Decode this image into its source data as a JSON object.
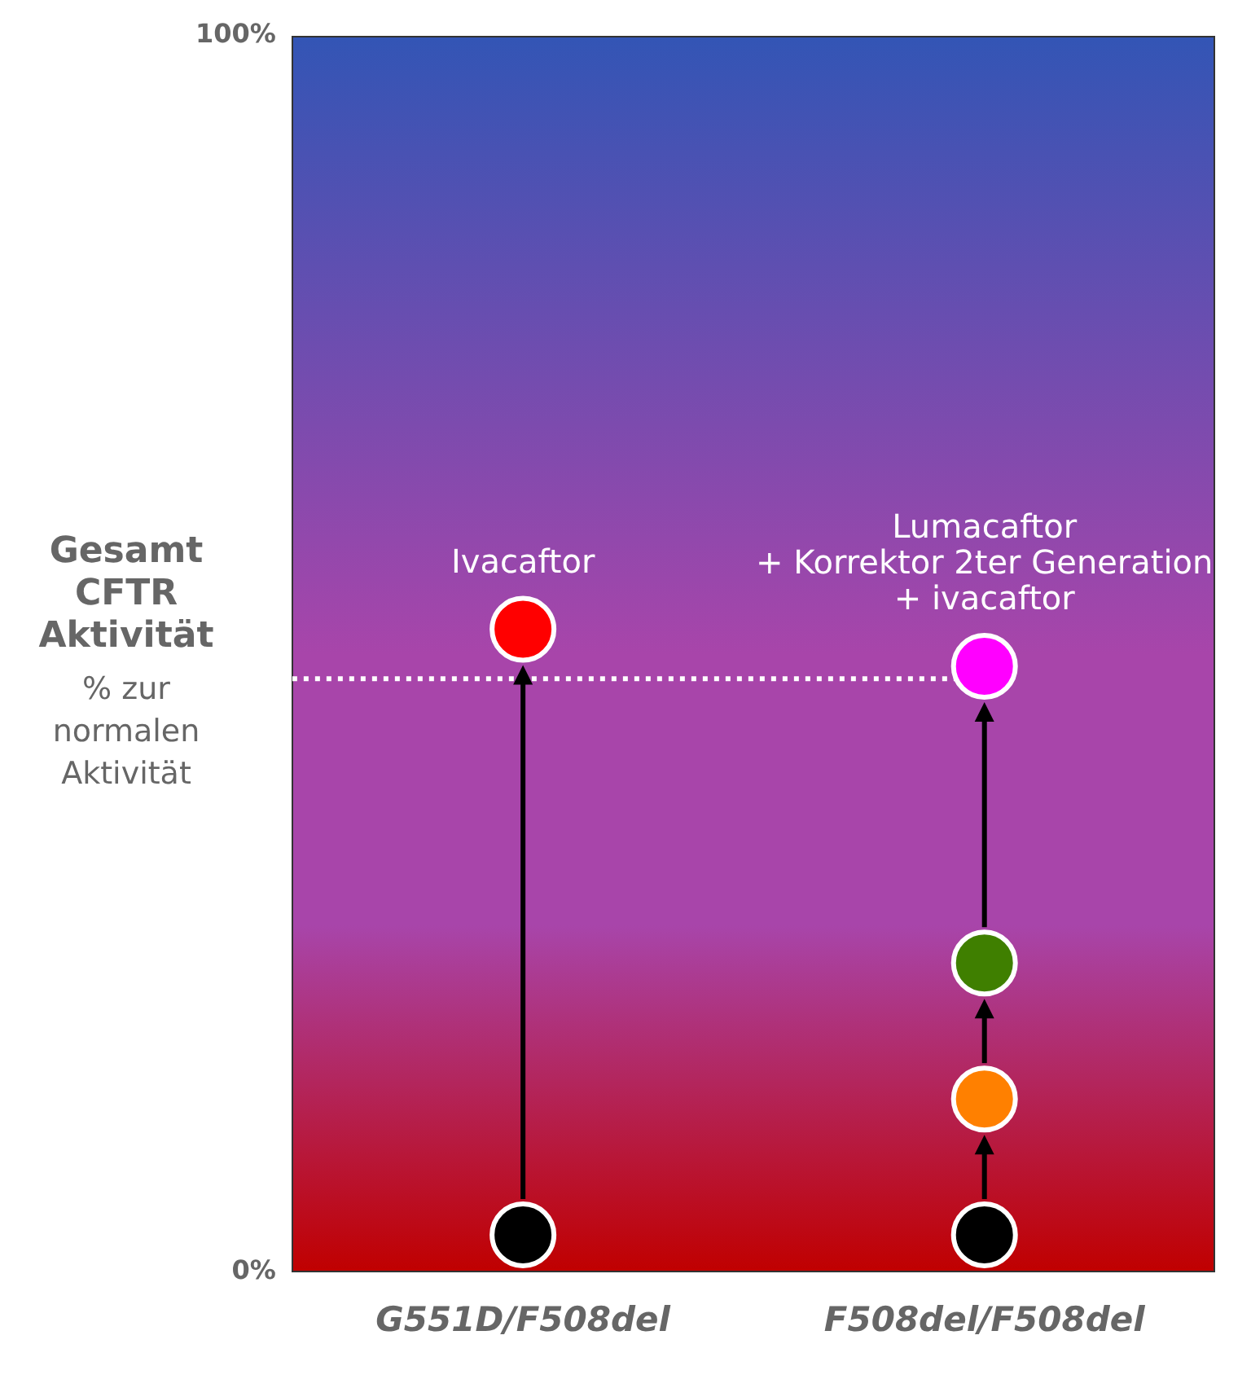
{
  "chart_data": {
    "type": "scatter",
    "ylabel": "Gesamt CFTR Aktivität",
    "categories": [
      "G551D/F508del",
      "F508del/F508del"
    ],
    "series": [
      {
        "type": "scatter",
        "x": [
          "G551D/F508del",
          "G551D/F508del",
          "F508del/F508del",
          "F508del/F508del",
          "F508del/F508del",
          "F508del/F508del"
        ],
        "values": [
          3,
          52,
          3,
          14,
          25,
          49
        ],
        "colors": [
          "#000000",
          "#ff0000",
          "#000000",
          "#ff8000",
          "#3f7f00",
          "#ff00ff"
        ]
      }
    ],
    "ylim": [
      0,
      100
    ],
    "yticks": [
      {
        "value": 0,
        "label": "0%"
      },
      {
        "value": 100,
        "label": "100%"
      }
    ],
    "ref_lines": [
      {
        "axis": "y",
        "value": 48,
        "label": null,
        "color": "#ffffff",
        "line_style": "dotted"
      }
    ],
    "annotations": [
      {
        "text": "Ivacaftor",
        "x": "G551D/F508del",
        "y": 52
      },
      {
        "text": "Lumacaftor\n+ Korrektor 2ter Generation\n+ ivacaftor",
        "x": "F508del/F508del",
        "y": 49
      },
      "% zur\nnormalen\nAktivität"
    ],
    "grid": false,
    "legend": false,
    "marker": "circle"
  }
}
